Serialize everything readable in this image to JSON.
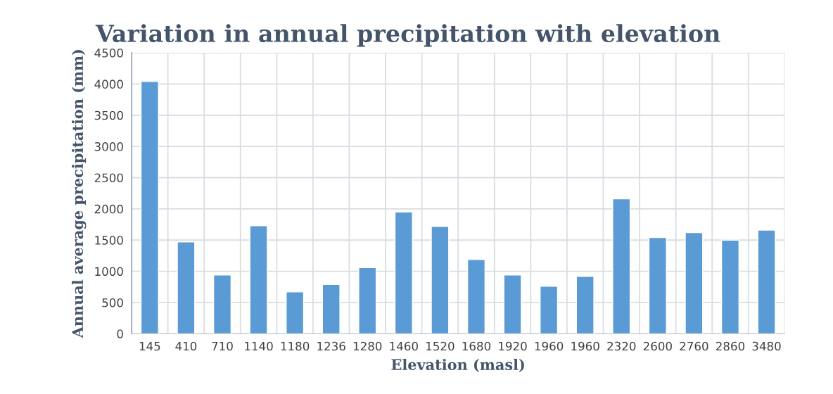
{
  "chart_data": {
    "type": "bar",
    "title": "Variation in annual precipitation with elevation",
    "xlabel": "Elevation (masl)",
    "ylabel": "Annual average precipitation (mm)",
    "categories": [
      "145",
      "410",
      "710",
      "1140",
      "1180",
      "1236",
      "1280",
      "1460",
      "1520",
      "1680",
      "1920",
      "1960",
      "1960",
      "2320",
      "2600",
      "2760",
      "2860",
      "3480"
    ],
    "values": [
      4040,
      1470,
      940,
      1730,
      670,
      790,
      1060,
      1950,
      1720,
      1190,
      940,
      760,
      920,
      2160,
      1540,
      1620,
      1500,
      1660
    ],
    "color": "#5b9bd5",
    "ylim": [
      0,
      4500
    ],
    "yticks": [
      0,
      500,
      1000,
      1500,
      2000,
      2500,
      3000,
      3500,
      4000,
      4500
    ],
    "grid": true
  }
}
